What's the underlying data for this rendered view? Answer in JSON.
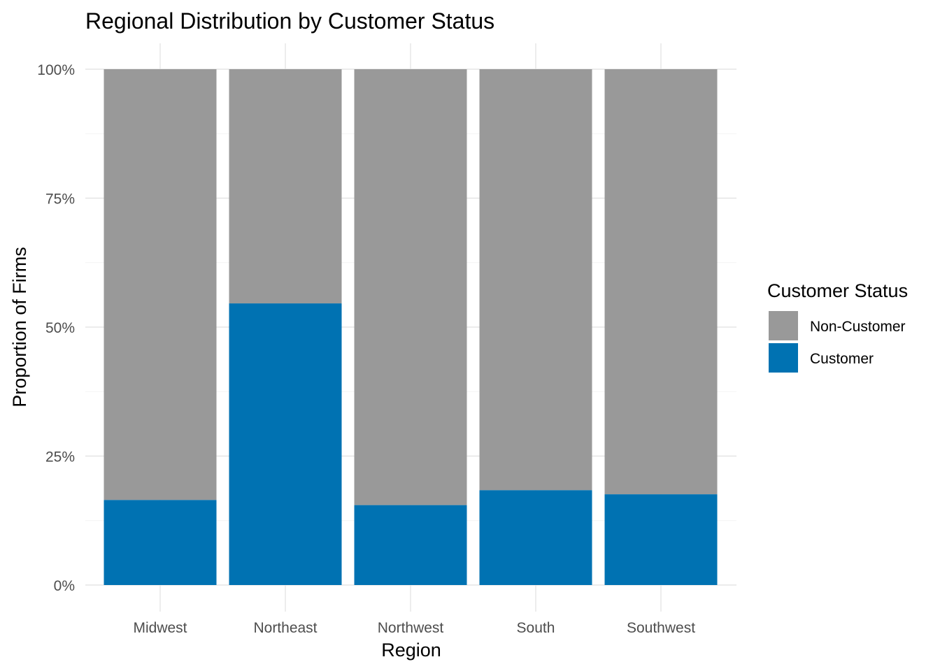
{
  "chart_data": {
    "type": "bar",
    "stacked": true,
    "percent": true,
    "title": "Regional Distribution by Customer Status",
    "xlabel": "Region",
    "ylabel": "Proportion of Firms",
    "categories": [
      "Midwest",
      "Northeast",
      "Northwest",
      "South",
      "Southwest"
    ],
    "series": [
      {
        "name": "Customer",
        "values": [
          16.5,
          54.6,
          15.5,
          18.4,
          17.6
        ],
        "color": "#0072B2"
      },
      {
        "name": "Non-Customer",
        "values": [
          83.5,
          45.4,
          84.5,
          81.6,
          82.4
        ],
        "color": "#999999"
      }
    ],
    "ylim": [
      0,
      100
    ],
    "yticks": [
      0,
      25,
      50,
      75,
      100
    ],
    "ytick_labels": [
      "0%",
      "25%",
      "50%",
      "75%",
      "100%"
    ],
    "grid": true,
    "legend": {
      "title": "Customer Status",
      "position": "right",
      "entries": [
        "Non-Customer",
        "Customer"
      ]
    }
  }
}
